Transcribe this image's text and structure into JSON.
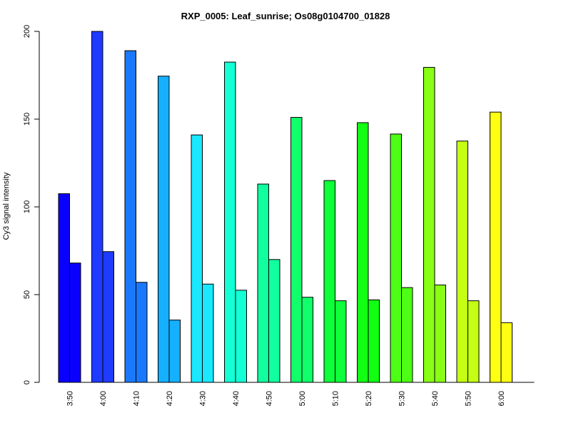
{
  "chart_data": {
    "type": "bar",
    "title": "RXP_0005: Leaf_sunrise; Os08g0104700_01828",
    "xlabel": "",
    "ylabel": "Cy3 signal intensity",
    "ylim": [
      0,
      200
    ],
    "yticks": [
      0,
      50,
      100,
      150,
      200
    ],
    "grid": false,
    "categories": [
      "3:50",
      "4:00",
      "4:10",
      "4:20",
      "4:30",
      "4:40",
      "4:50",
      "5:00",
      "5:10",
      "5:20",
      "5:30",
      "5:40",
      "5:50",
      "6:00"
    ],
    "colors": [
      "#0A00FF",
      "#1F3BFF",
      "#1A78FF",
      "#15B0FF",
      "#19E8FF",
      "#14FFD6",
      "#12FFA0",
      "#10FF6A",
      "#0FFF3A",
      "#12FF14",
      "#4CFF14",
      "#88FF14",
      "#C4FF14",
      "#FFFF14"
    ],
    "series": [
      {
        "values": [
          107.5,
          200,
          189,
          174.5,
          141,
          182.5,
          113,
          151,
          115,
          148,
          141.5,
          179.5,
          137.5,
          154
        ]
      },
      {
        "values": [
          68,
          74.5,
          57,
          35.5,
          56,
          52.5,
          70,
          48.5,
          46.5,
          47,
          54,
          55.5,
          46.5,
          34
        ]
      }
    ]
  }
}
